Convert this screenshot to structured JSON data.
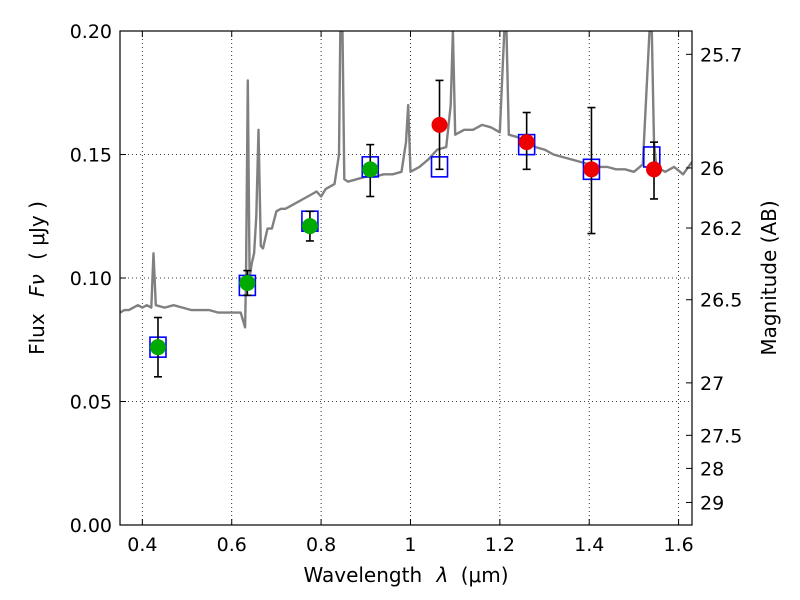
{
  "chart_data": {
    "type": "scatter",
    "xlabel": "Wavelength",
    "xlabel_symbol": "λ",
    "xlabel_unit": "(μm)",
    "ylabel": "Flux",
    "ylabel_symbol": "Fν",
    "ylabel_unit": "( μJy )",
    "y2label": "Magnitude (AB)",
    "xlim": [
      0.35,
      1.63
    ],
    "ylim": [
      0.0,
      0.2
    ],
    "grid": true,
    "x_ticks": [
      {
        "value": 0.4,
        "label": "0.4"
      },
      {
        "value": 0.6,
        "label": "0.6"
      },
      {
        "value": 0.8,
        "label": "0.8"
      },
      {
        "value": 1.0,
        "label": "1"
      },
      {
        "value": 1.2,
        "label": "1.2"
      },
      {
        "value": 1.4,
        "label": "1.4"
      },
      {
        "value": 1.6,
        "label": "1.6"
      }
    ],
    "y_ticks": [
      {
        "value": 0.0,
        "label": "0.00"
      },
      {
        "value": 0.05,
        "label": "0.05"
      },
      {
        "value": 0.1,
        "label": "0.10"
      },
      {
        "value": 0.15,
        "label": "0.15"
      },
      {
        "value": 0.2,
        "label": "0.20"
      }
    ],
    "y2_ticks": [
      {
        "value": 25.7,
        "label": "25.7"
      },
      {
        "value": 26.0,
        "label": "26"
      },
      {
        "value": 26.2,
        "label": "26.2"
      },
      {
        "value": 26.5,
        "label": "26.5"
      },
      {
        "value": 27.0,
        "label": "27"
      },
      {
        "value": 27.5,
        "label": "27.5"
      },
      {
        "value": 28.0,
        "label": "28"
      },
      {
        "value": 29.0,
        "label": "29"
      }
    ],
    "series": [
      {
        "kind": "model_spectrum",
        "color": "#808080",
        "x": [
          0.35,
          0.36,
          0.37,
          0.38,
          0.39,
          0.4,
          0.41,
          0.42,
          0.425,
          0.43,
          0.45,
          0.47,
          0.49,
          0.51,
          0.53,
          0.55,
          0.57,
          0.59,
          0.61,
          0.62,
          0.63,
          0.632,
          0.636,
          0.64,
          0.645,
          0.65,
          0.655,
          0.66,
          0.665,
          0.67,
          0.68,
          0.69,
          0.7,
          0.71,
          0.72,
          0.73,
          0.74,
          0.75,
          0.76,
          0.77,
          0.78,
          0.79,
          0.8,
          0.81,
          0.82,
          0.83,
          0.84,
          0.843,
          0.848,
          0.852,
          0.86,
          0.88,
          0.9,
          0.92,
          0.94,
          0.96,
          0.98,
          0.99,
          0.995,
          1.0,
          1.02,
          1.04,
          1.06,
          1.08,
          1.09,
          1.095,
          1.1,
          1.12,
          1.14,
          1.16,
          1.18,
          1.2,
          1.21,
          1.215,
          1.22,
          1.24,
          1.26,
          1.28,
          1.3,
          1.32,
          1.34,
          1.36,
          1.38,
          1.4,
          1.42,
          1.44,
          1.46,
          1.48,
          1.5,
          1.52,
          1.535,
          1.54,
          1.545,
          1.55,
          1.57,
          1.59,
          1.61,
          1.63
        ],
        "values": [
          0.086,
          0.087,
          0.087,
          0.088,
          0.089,
          0.088,
          0.089,
          0.088,
          0.11,
          0.089,
          0.088,
          0.089,
          0.088,
          0.087,
          0.087,
          0.087,
          0.086,
          0.086,
          0.086,
          0.086,
          0.08,
          0.1,
          0.18,
          0.1,
          0.106,
          0.11,
          0.125,
          0.16,
          0.113,
          0.112,
          0.12,
          0.12,
          0.127,
          0.128,
          0.128,
          0.129,
          0.13,
          0.131,
          0.132,
          0.133,
          0.134,
          0.135,
          0.133,
          0.136,
          0.137,
          0.138,
          0.15,
          0.2,
          0.2,
          0.14,
          0.139,
          0.14,
          0.141,
          0.141,
          0.142,
          0.142,
          0.143,
          0.155,
          0.17,
          0.143,
          0.145,
          0.148,
          0.152,
          0.153,
          0.17,
          0.2,
          0.158,
          0.16,
          0.16,
          0.162,
          0.161,
          0.159,
          0.2,
          0.2,
          0.158,
          0.157,
          0.155,
          0.153,
          0.152,
          0.15,
          0.149,
          0.148,
          0.147,
          0.146,
          0.145,
          0.145,
          0.144,
          0.144,
          0.143,
          0.146,
          0.2,
          0.2,
          0.155,
          0.145,
          0.143,
          0.145,
          0.142,
          0.147
        ]
      },
      {
        "kind": "model_photometry",
        "marker": "open-square",
        "color": "#0000ff",
        "x": [
          0.435,
          0.635,
          0.775,
          0.91,
          1.065,
          1.26,
          1.405,
          1.54
        ],
        "values": [
          0.072,
          0.097,
          0.123,
          0.145,
          0.145,
          0.154,
          0.144,
          0.149
        ]
      },
      {
        "kind": "observed_flux",
        "marker": "filled-circle",
        "color": "#00aa00",
        "x": [
          0.435,
          0.635,
          0.775,
          0.91
        ],
        "values": [
          0.072,
          0.098,
          0.121,
          0.144
        ],
        "error_low": [
          0.06,
          0.093,
          0.115,
          0.133
        ],
        "error_high": [
          0.084,
          0.103,
          0.127,
          0.154
        ]
      },
      {
        "kind": "observed_flux",
        "marker": "filled-circle",
        "color": "#ee0000",
        "x": [
          1.065,
          1.26,
          1.405,
          1.545
        ],
        "values": [
          0.162,
          0.155,
          0.144,
          0.144
        ],
        "error_low": [
          0.144,
          0.144,
          0.118,
          0.132
        ],
        "error_high": [
          0.18,
          0.167,
          0.169,
          0.155
        ]
      }
    ]
  }
}
